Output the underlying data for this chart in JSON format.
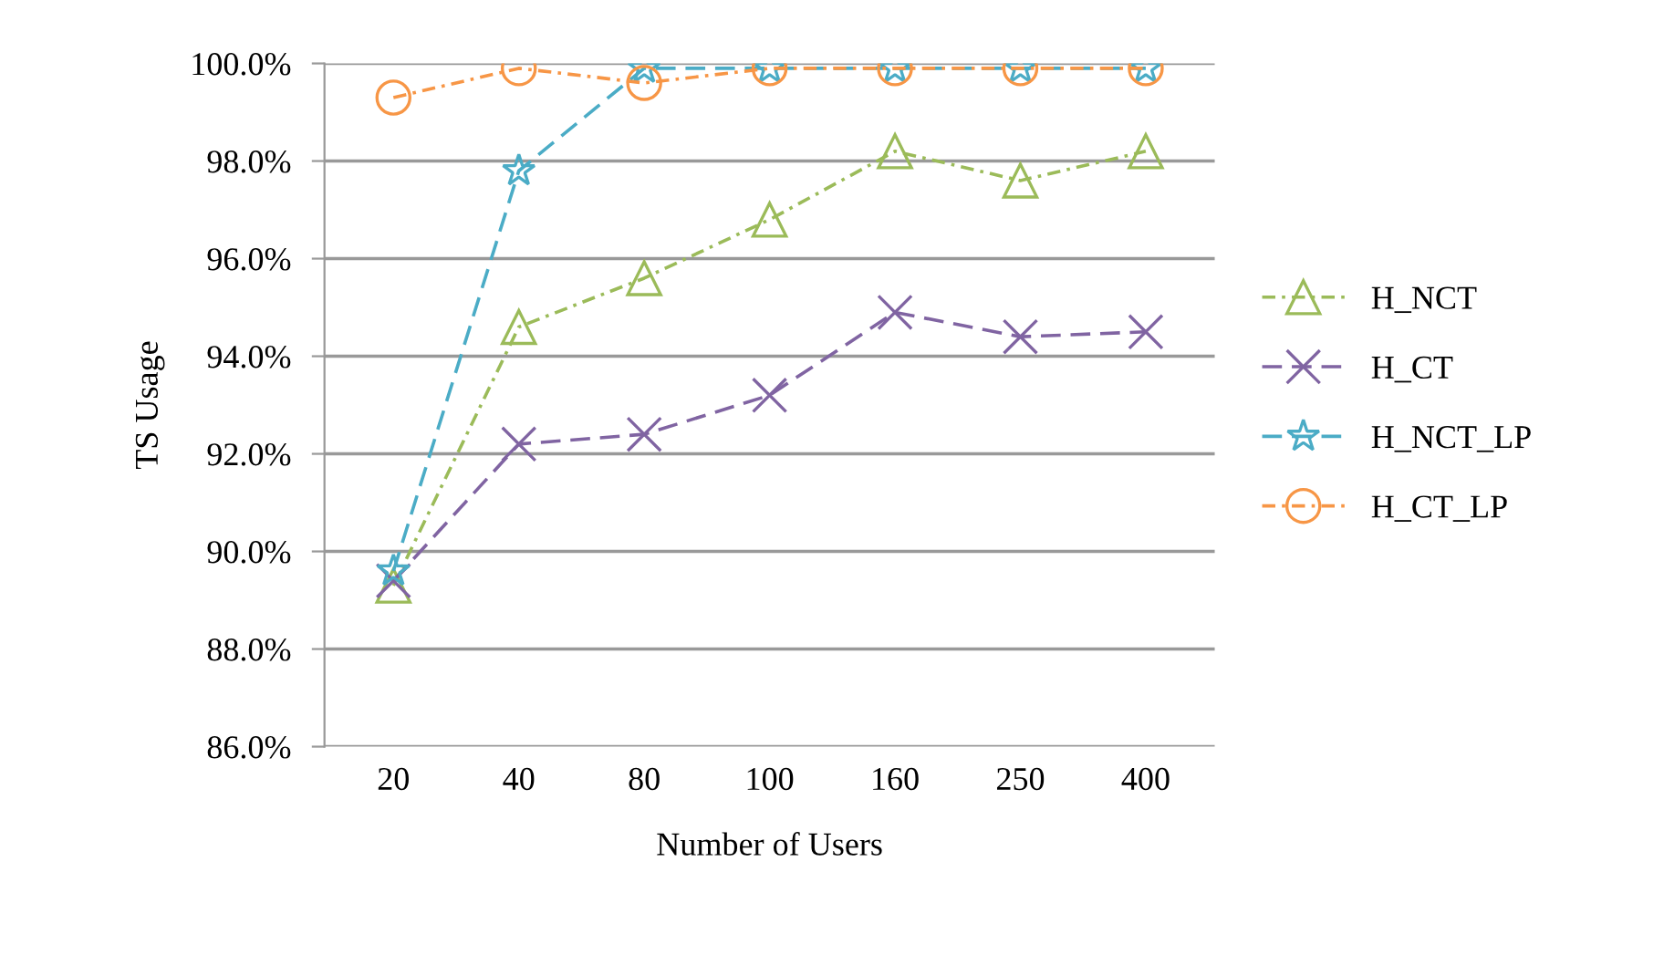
{
  "chart_data": {
    "type": "line",
    "xlabel": "Number of Users",
    "ylabel": "TS Usage",
    "categories": [
      "20",
      "40",
      "80",
      "100",
      "160",
      "250",
      "400"
    ],
    "series": [
      {
        "name": "H_NCT",
        "color": "#9bbb59",
        "marker": "triangle",
        "line_style": "dotted",
        "values": [
          89.3,
          94.6,
          95.6,
          96.8,
          98.2,
          97.6,
          98.2
        ]
      },
      {
        "name": "H_CT",
        "color": "#8064a2",
        "marker": "cross",
        "line_style": "dashed",
        "values": [
          89.4,
          92.2,
          92.4,
          93.2,
          94.9,
          94.4,
          94.5
        ]
      },
      {
        "name": "H_NCT_LP",
        "color": "#4bacc6",
        "marker": "star",
        "line_style": "dashed",
        "values": [
          89.6,
          97.8,
          99.9,
          99.9,
          99.9,
          99.9,
          99.9
        ]
      },
      {
        "name": "H_CT_LP",
        "color": "#f79646",
        "marker": "circle",
        "line_style": "dotted",
        "values": [
          99.3,
          99.9,
          99.6,
          99.9,
          99.9,
          99.9,
          99.9
        ]
      }
    ],
    "ylim": [
      86,
      100
    ],
    "yticks": [
      {
        "value": 86,
        "label": "86.0%"
      },
      {
        "value": 88,
        "label": "88.0%"
      },
      {
        "value": 90,
        "label": "90.0%"
      },
      {
        "value": 92,
        "label": "92.0%"
      },
      {
        "value": 94,
        "label": "94.0%"
      },
      {
        "value": 96,
        "label": "96.0%"
      },
      {
        "value": 98,
        "label": "98.0%"
      },
      {
        "value": 100,
        "label": "100.0%"
      }
    ],
    "grid": "y",
    "legend": "right"
  }
}
